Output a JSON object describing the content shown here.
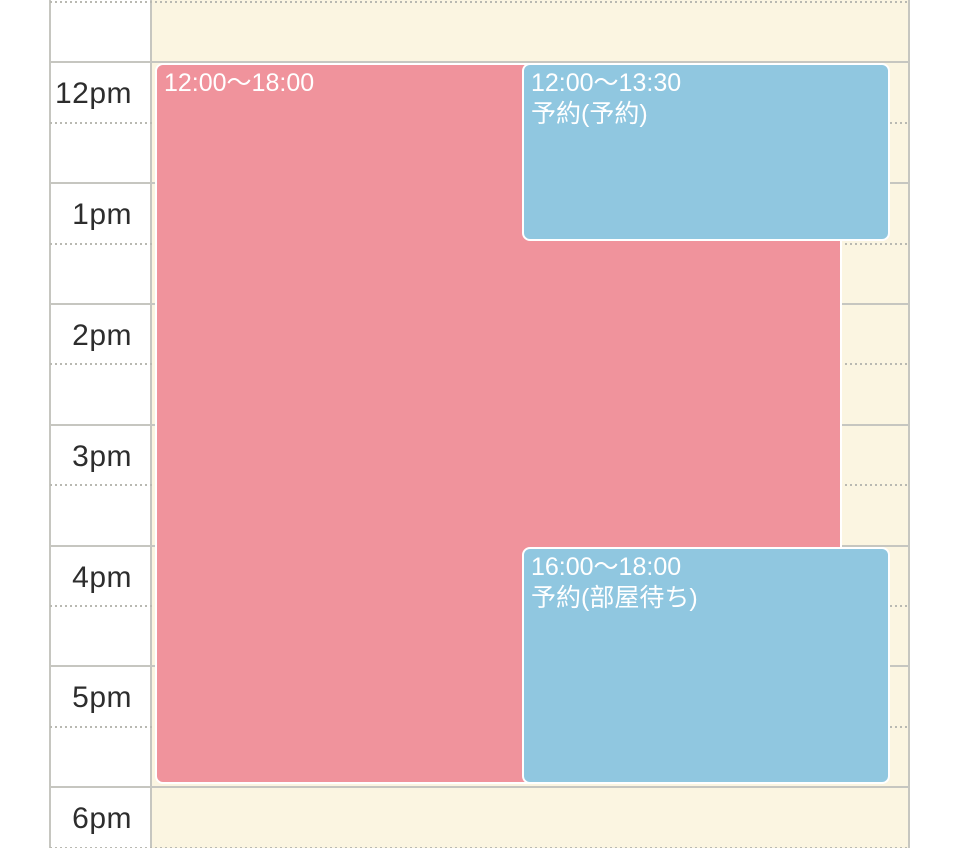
{
  "colors": {
    "page_bg": "#ffffff",
    "day_column_bg": "#fbf5e1",
    "grid_line": "#c6c6c0",
    "grid_dot": "#b9b9b2",
    "hour_label_text": "#2d2d2d",
    "event_busy_bg": "#f0939c",
    "event_reservation_bg": "#90c7e0",
    "event_border": "#ffffff",
    "event_text": "#ffffff"
  },
  "time_gutter": {
    "hour_labels": [
      {
        "label": "12pm",
        "hour": 12
      },
      {
        "label": "1pm",
        "hour": 13
      },
      {
        "label": "2pm",
        "hour": 14
      },
      {
        "label": "3pm",
        "hour": 15
      },
      {
        "label": "4pm",
        "hour": 16
      },
      {
        "label": "5pm",
        "hour": 17
      },
      {
        "label": "6pm",
        "hour": 18
      }
    ]
  },
  "events": [
    {
      "id": "busy-block",
      "time_range": "12:00〜18:00",
      "title": "",
      "start": 12.0,
      "end": 18.0,
      "kind": "busy",
      "lane": "full"
    },
    {
      "id": "reservation-1",
      "time_range": "12:00〜13:30",
      "title": "予約(予約)",
      "start": 12.0,
      "end": 13.5,
      "kind": "reservation",
      "lane": "right"
    },
    {
      "id": "reservation-2",
      "time_range": "16:00〜18:00",
      "title": "予約(部屋待ち)",
      "start": 16.0,
      "end": 18.0,
      "kind": "reservation",
      "lane": "right"
    }
  ]
}
